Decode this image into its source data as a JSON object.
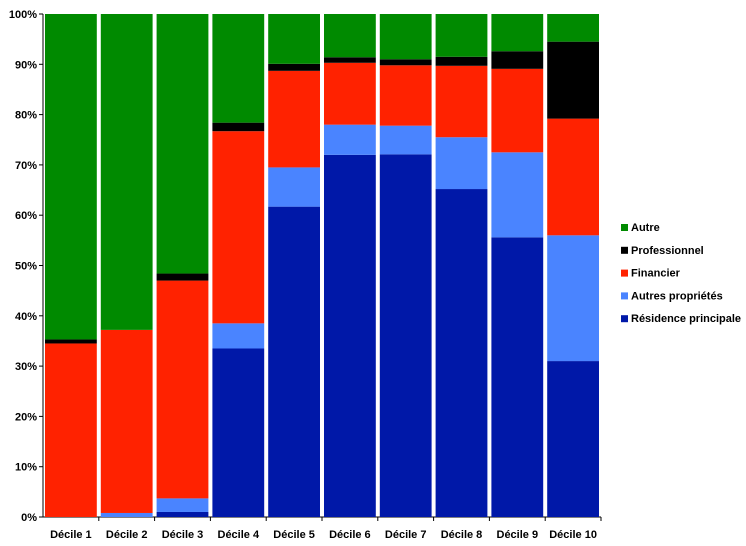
{
  "chart_data": {
    "type": "bar",
    "stacked": true,
    "percent": true,
    "categories": [
      "Décile 1",
      "Décile 2",
      "Décile 3",
      "Décile 4",
      "Décile 5",
      "Décile 6",
      "Décile 7",
      "Décile 8",
      "Décile 9",
      "Décile 10"
    ],
    "series": [
      {
        "name": "Résidence principale",
        "color": "#0018a8",
        "values": [
          0,
          0,
          1,
          33.5,
          61.7,
          72,
          72.1,
          65.2,
          55.6,
          31
        ]
      },
      {
        "name": "Autres propriétés",
        "color": "#4a84ff",
        "values": [
          0,
          0.8,
          2.7,
          5,
          7.8,
          6,
          5.7,
          10.3,
          16.9,
          25
        ]
      },
      {
        "name": "Financier",
        "color": "#ff2200",
        "values": [
          34.5,
          36.4,
          43.3,
          38.2,
          19.2,
          12.3,
          12,
          14.2,
          16.6,
          23.2
        ]
      },
      {
        "name": "Professionnel",
        "color": "#000000",
        "values": [
          0.8,
          0,
          1.4,
          1.7,
          1.4,
          1.1,
          1.2,
          1.8,
          3.5,
          15.3
        ]
      },
      {
        "name": "Autre",
        "color": "#008a00",
        "values": [
          64.7,
          62.8,
          51.6,
          21.6,
          9.9,
          8.6,
          9,
          8.5,
          7.4,
          5.5
        ]
      }
    ],
    "y_ticks": [
      "0%",
      "10%",
      "20%",
      "30%",
      "40%",
      "50%",
      "60%",
      "70%",
      "80%",
      "90%",
      "100%"
    ],
    "ylim": [
      0,
      100
    ],
    "legend": {
      "position": "right",
      "order": [
        "Autre",
        "Professionnel",
        "Financier",
        "Autres propriétés",
        "Résidence principale"
      ]
    },
    "grid": false
  }
}
